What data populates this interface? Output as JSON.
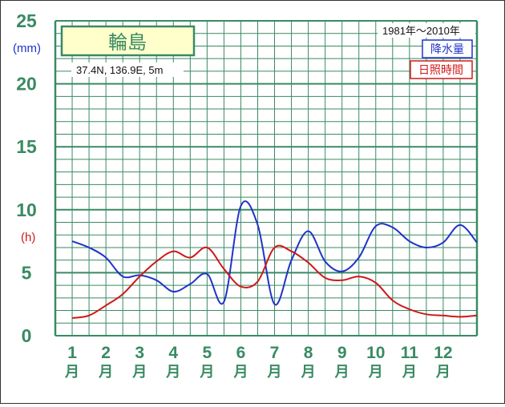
{
  "station": {
    "name": "輪島",
    "coords": "37.4N,  136.9E,  5m"
  },
  "period": "1981年〜2010年",
  "legend": {
    "precip": "降水量",
    "sunshine": "日照時間"
  },
  "units": {
    "precip": "(mm)",
    "sunshine": "(h)"
  },
  "month_suffix": "月",
  "colors": {
    "grid": "#3a8a63",
    "precip": "#1f33c8",
    "sunshine": "#d01818",
    "station_box_fill": "#ffffcc"
  },
  "chart_data": {
    "type": "line",
    "ylim": [
      0,
      25
    ],
    "yticks": [
      0,
      5,
      10,
      15,
      20,
      25
    ],
    "categories": [
      "1",
      "2",
      "3",
      "4",
      "5",
      "6",
      "7",
      "8",
      "9",
      "10",
      "11",
      "12"
    ],
    "grid": true,
    "series": [
      {
        "name": "降水量",
        "color": "#1f33c8",
        "x": [
          0.5,
          1.0,
          1.5,
          2.0,
          2.5,
          3.0,
          3.5,
          4.0,
          4.5,
          5.0,
          5.5,
          6.0,
          6.5,
          7.0,
          7.5,
          8.0,
          8.5,
          9.0,
          9.5,
          10.0,
          10.5,
          11.0,
          11.5,
          12.0,
          12.5
        ],
        "values": [
          7.5,
          7.0,
          6.2,
          4.7,
          4.8,
          4.4,
          3.5,
          4.1,
          4.9,
          2.7,
          10.3,
          8.8,
          2.5,
          6.0,
          8.3,
          5.9,
          5.1,
          6.2,
          8.7,
          8.6,
          7.5,
          7.0,
          7.4,
          8.8,
          7.4
        ]
      },
      {
        "name": "日照時間",
        "color": "#d01818",
        "x": [
          0.5,
          1.0,
          1.5,
          2.0,
          2.5,
          3.0,
          3.5,
          4.0,
          4.5,
          5.0,
          5.5,
          6.0,
          6.5,
          7.0,
          7.5,
          8.0,
          8.5,
          9.0,
          9.5,
          10.0,
          10.5,
          11.0,
          11.5,
          12.0,
          12.5
        ],
        "values": [
          1.4,
          1.6,
          2.4,
          3.3,
          4.7,
          5.9,
          6.7,
          6.2,
          7.0,
          5.3,
          3.9,
          4.3,
          7.0,
          6.7,
          5.8,
          4.6,
          4.4,
          4.7,
          4.2,
          2.8,
          2.1,
          1.7,
          1.6,
          1.5,
          1.6
        ]
      }
    ]
  }
}
